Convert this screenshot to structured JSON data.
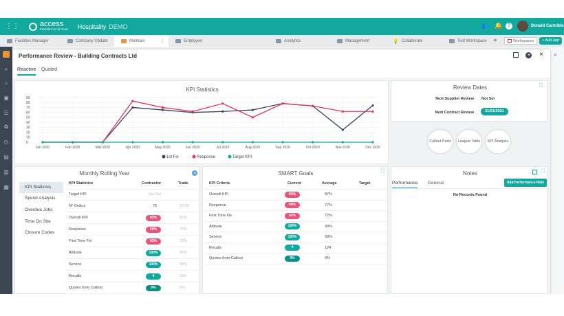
{
  "app": {
    "brand": "access",
    "brand_tag": "Freedom to do more",
    "module": "Hospitality",
    "env": "DEMO",
    "user": "Donald Carmikle",
    "workspaces": "Workspaces",
    "add_app": "+ Add App"
  },
  "tabs": [
    "Facilities Manager",
    "Company Update",
    "Maintain",
    "Employee",
    "Analytics",
    "Management",
    "Collaborate",
    "Test Workspace"
  ],
  "modal": {
    "title": "Performance Review - Building Contracts Ltd",
    "subtabs": [
      "Reactive",
      "Quoted"
    ]
  },
  "kpi": {
    "title": "KPI Statistics",
    "legend": [
      "1st Fix",
      "Response",
      "Target KPI"
    ]
  },
  "chart_data": {
    "type": "line",
    "x": [
      "Jan 2020",
      "Feb 2020",
      "Mar 2020",
      "Apr 2020",
      "May 2020",
      "Jun 2020",
      "Jul 2020",
      "Aug 2020",
      "Sep 2020",
      "Oct 2020",
      "Nov 2020",
      "Dec 2020"
    ],
    "yticks": [
      0,
      10,
      20,
      30,
      40,
      50,
      60,
      70,
      80,
      90
    ],
    "ylim": [
      0,
      90
    ],
    "series": [
      {
        "name": "1st Fix",
        "color": "#3a3f63",
        "values": [
          0,
          0,
          0,
          70,
          65,
          60,
          62,
          65,
          78,
          73,
          25,
          74
        ]
      },
      {
        "name": "Response",
        "color": "#e0355f",
        "values": [
          0,
          0,
          0,
          83,
          70,
          62,
          78,
          50,
          78,
          73,
          62,
          62
        ]
      },
      {
        "name": "Target KPI",
        "color": "#13a89e",
        "values": [
          0,
          0,
          0,
          0,
          0,
          0,
          0,
          0,
          0,
          0,
          0,
          0
        ]
      }
    ]
  },
  "review": {
    "title": "Review Dates",
    "supplier_label": "Next Supplier Review",
    "supplier_value": "Not Set",
    "contract_label": "Next Contract Review",
    "contract_value": "31/01/2021",
    "buttons": [
      "Callout Parts",
      "League Table",
      "KPI Analysis"
    ]
  },
  "rolling": {
    "title": "Monthly Rolling Year",
    "nav": [
      "KPI Statistics",
      "Spend Analysis",
      "Overdue Jobs",
      "Time On Site",
      "Closure Codes"
    ],
    "headers": [
      "KPI Statistics",
      "Contractor",
      "Trade"
    ],
    "rows": [
      {
        "label": "Target KPI",
        "contractor": "Not Set",
        "trade": "",
        "type": "muted"
      },
      {
        "label": "Nº Orders",
        "contractor": "75",
        "trade": "3,019",
        "type": "text"
      },
      {
        "label": "Overall KPI",
        "contractor": "83%",
        "trade": "87%",
        "type": "pink"
      },
      {
        "label": "Response",
        "contractor": "69%",
        "trade": "77%",
        "type": "pink"
      },
      {
        "label": "First Time Fix",
        "contractor": "62%",
        "trade": "72%",
        "type": "pink"
      },
      {
        "label": "Attitude",
        "contractor": "100%",
        "trade": "99%",
        "type": "teal"
      },
      {
        "label": "Service",
        "contractor": "100%",
        "trade": "99%",
        "type": "teal"
      },
      {
        "label": "Recalls",
        "contractor": "4",
        "trade": "124",
        "type": "teal"
      },
      {
        "label": "Quotes from Callout",
        "contractor": "0%",
        "trade": "0%",
        "type": "dteal"
      }
    ]
  },
  "smart": {
    "title": "SMART Goals",
    "headers": [
      "KPI Criteria",
      "Current",
      "Average",
      "Target"
    ],
    "rows": [
      {
        "label": "Overall KPI",
        "current": "83%",
        "average": "87%",
        "type": "pink"
      },
      {
        "label": "Response",
        "current": "69%",
        "average": "77%",
        "type": "pink"
      },
      {
        "label": "First Time Fix",
        "current": "62%",
        "average": "72%",
        "type": "pink"
      },
      {
        "label": "Attitude",
        "current": "100%",
        "average": "99%",
        "type": "teal"
      },
      {
        "label": "Service",
        "current": "100%",
        "average": "99%",
        "type": "teal"
      },
      {
        "label": "Recalls",
        "current": "4",
        "average": "124",
        "type": "teal"
      },
      {
        "label": "Quotes from Callout",
        "current": "0%",
        "average": "0%",
        "type": "dteal"
      }
    ]
  },
  "notes": {
    "title": "Notes",
    "tabs": [
      "Performance",
      "General"
    ],
    "add_button": "Add Performance Note",
    "empty": "No Records Found"
  },
  "colors": {
    "accent": "#13a89e",
    "danger": "#e6557a",
    "nav": "#3b4652"
  }
}
